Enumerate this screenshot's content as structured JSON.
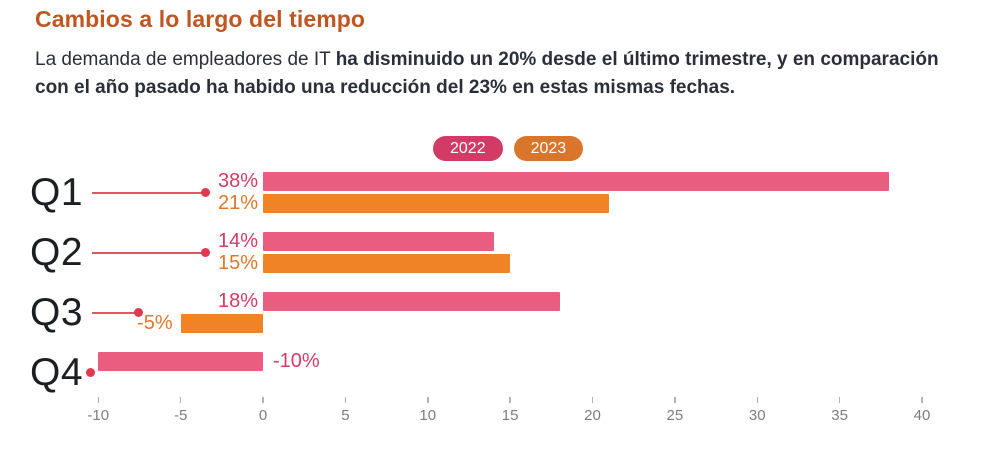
{
  "header": {
    "title": "Cambios a lo largo del tiempo",
    "subtitle_regular": "La demanda de empleadores de IT ",
    "subtitle_bold": "ha disminuido un 20% desde el último trimestre, y en comparación con el año pasado ha habido una reducción del 23% en estas mismas fechas."
  },
  "legend": {
    "items": [
      {
        "label": "2022",
        "color": "#d23b66"
      },
      {
        "label": "2023",
        "color": "#d9762b"
      }
    ]
  },
  "colors": {
    "title_accent": "#c05621",
    "bar_2022": "#ea5c80",
    "bar_2023": "#ef8326",
    "label_2022": "#d23b66",
    "label_2023": "#e0762a",
    "leader_line": "#e25563",
    "leader_dot": "#e0394f",
    "axis_text": "#7d7d7d"
  },
  "chart_data": {
    "type": "bar",
    "orientation": "horizontal",
    "title": "Cambios a lo largo del tiempo",
    "categories": [
      "Q1",
      "Q2",
      "Q3",
      "Q4"
    ],
    "series": [
      {
        "name": "2022",
        "color": "#ea5c80",
        "label_color": "#d23b66",
        "values": [
          38,
          14,
          18,
          -10
        ],
        "labels": [
          "38%",
          "14%",
          "18%",
          "-10%"
        ]
      },
      {
        "name": "2023",
        "color": "#ef8326",
        "label_color": "#e0762a",
        "values": [
          21,
          15,
          -5,
          null
        ],
        "labels": [
          "21%",
          "15%",
          "-5%",
          null
        ]
      }
    ],
    "xlim": [
      -10,
      40
    ],
    "x_ticks": [
      -10,
      -5,
      0,
      5,
      10,
      15,
      20,
      25,
      30,
      35,
      40
    ],
    "grid": false,
    "legend_position": "top-center"
  }
}
